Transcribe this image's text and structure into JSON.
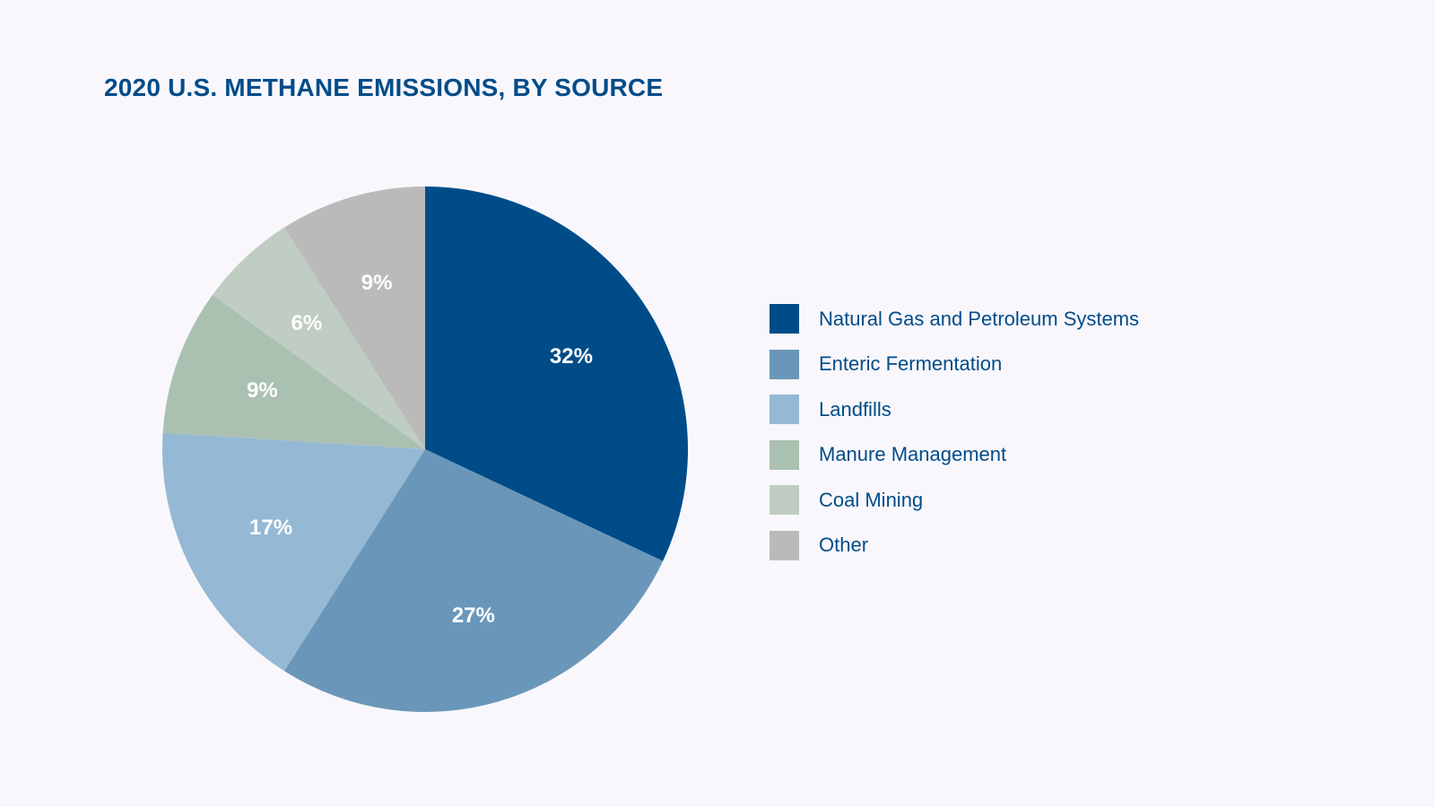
{
  "chart_data": {
    "type": "pie",
    "title": "2020 U.S. METHANE EMISSIONS, BY SOURCE",
    "unit": "%",
    "slices": [
      {
        "name": "Natural Gas and Petroleum Systems",
        "value": 32,
        "label": "32%",
        "color": "#004c89"
      },
      {
        "name": "Enteric Fermentation",
        "value": 27,
        "label": "27%",
        "color": "#6a97b9"
      },
      {
        "name": "Landfills",
        "value": 17,
        "label": "17%",
        "color": "#95b9d4"
      },
      {
        "name": "Manure Management",
        "value": 9,
        "label": "9%",
        "color": "#aac1b1"
      },
      {
        "name": "Coal Mining",
        "value": 6,
        "label": "6%",
        "color": "#bfcdc3"
      },
      {
        "name": "Other",
        "value": 9,
        "label": "9%",
        "color": "#bababa"
      }
    ],
    "start_angle": "12 o'clock",
    "direction": "clockwise",
    "legend_position": "right"
  },
  "colors": {
    "title": "#004c89",
    "label_text": "#ffffff",
    "background": "#f9f7fc"
  }
}
